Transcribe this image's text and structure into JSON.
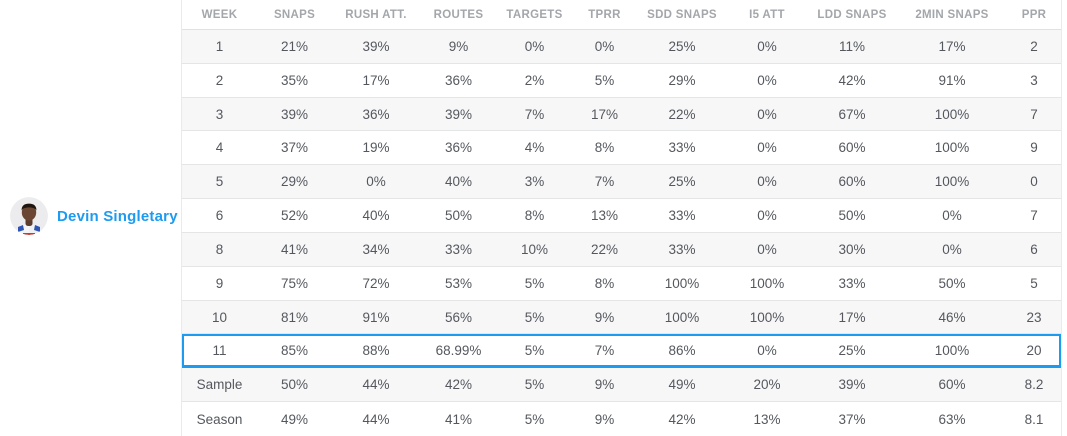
{
  "colors": {
    "accent": "#1d9bf0",
    "row_alt": "#f7f7f8"
  },
  "player": {
    "name": "Devin Singletary",
    "avatar_icon": "player-headshot-icon"
  },
  "table": {
    "columns": [
      "WEEK",
      "SNAPS",
      "RUSH ATT.",
      "ROUTES",
      "TARGETS",
      "TPRR",
      "SDD SNAPS",
      "I5 ATT",
      "LDD SNAPS",
      "2MIN SNAPS",
      "PPR"
    ],
    "rows": [
      {
        "cells": [
          "1",
          "21%",
          "39%",
          "9%",
          "0%",
          "0%",
          "25%",
          "0%",
          "11%",
          "17%",
          "2"
        ],
        "highlighted": false
      },
      {
        "cells": [
          "2",
          "35%",
          "17%",
          "36%",
          "2%",
          "5%",
          "29%",
          "0%",
          "42%",
          "91%",
          "3"
        ],
        "highlighted": false
      },
      {
        "cells": [
          "3",
          "39%",
          "36%",
          "39%",
          "7%",
          "17%",
          "22%",
          "0%",
          "67%",
          "100%",
          "7"
        ],
        "highlighted": false
      },
      {
        "cells": [
          "4",
          "37%",
          "19%",
          "36%",
          "4%",
          "8%",
          "33%",
          "0%",
          "60%",
          "100%",
          "9"
        ],
        "highlighted": false
      },
      {
        "cells": [
          "5",
          "29%",
          "0%",
          "40%",
          "3%",
          "7%",
          "25%",
          "0%",
          "60%",
          "100%",
          "0"
        ],
        "highlighted": false
      },
      {
        "cells": [
          "6",
          "52%",
          "40%",
          "50%",
          "8%",
          "13%",
          "33%",
          "0%",
          "50%",
          "0%",
          "7"
        ],
        "highlighted": false
      },
      {
        "cells": [
          "8",
          "41%",
          "34%",
          "33%",
          "10%",
          "22%",
          "33%",
          "0%",
          "30%",
          "0%",
          "6"
        ],
        "highlighted": false
      },
      {
        "cells": [
          "9",
          "75%",
          "72%",
          "53%",
          "5%",
          "8%",
          "100%",
          "100%",
          "33%",
          "50%",
          "5"
        ],
        "highlighted": false
      },
      {
        "cells": [
          "10",
          "81%",
          "91%",
          "56%",
          "5%",
          "9%",
          "100%",
          "100%",
          "17%",
          "46%",
          "23"
        ],
        "highlighted": false
      },
      {
        "cells": [
          "11",
          "85%",
          "88%",
          "68.99%",
          "5%",
          "7%",
          "86%",
          "0%",
          "25%",
          "100%",
          "20"
        ],
        "highlighted": true
      },
      {
        "cells": [
          "Sample",
          "50%",
          "44%",
          "42%",
          "5%",
          "9%",
          "49%",
          "20%",
          "39%",
          "60%",
          "8.2"
        ],
        "highlighted": false
      },
      {
        "cells": [
          "Season",
          "49%",
          "44%",
          "41%",
          "5%",
          "9%",
          "42%",
          "13%",
          "37%",
          "63%",
          "8.1"
        ],
        "highlighted": false
      }
    ]
  }
}
